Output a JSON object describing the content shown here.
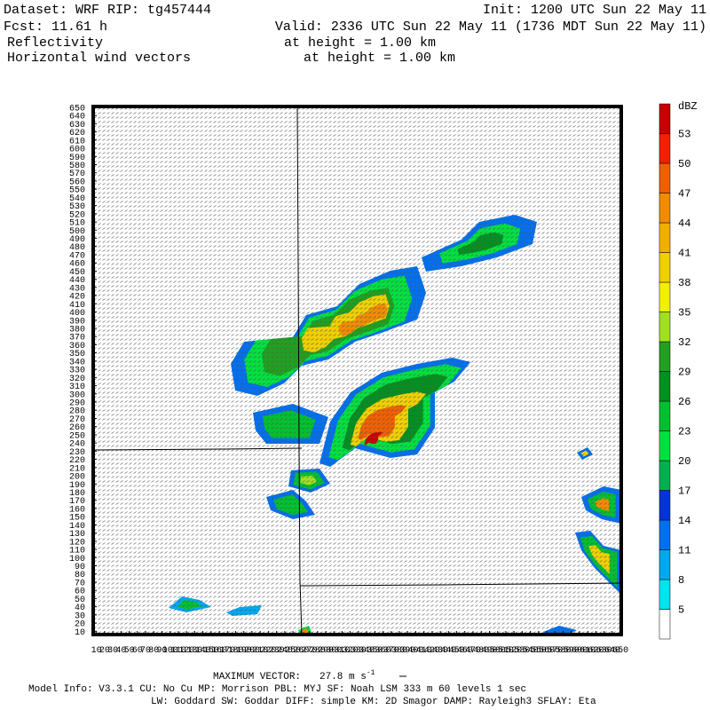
{
  "header": {
    "dataset": "Dataset: WRF  RIP: tg457444",
    "init": "Init: 1200 UTC Sun 22 May 11",
    "fcst": "Fcst:   11.61 h",
    "valid": "Valid: 2336 UTC Sun 22 May 11 (1736 MDT Sun 22 May 11)",
    "field1": "Reflectivity",
    "field1_level": "at height =  1.00 km",
    "field2": "Horizontal wind vectors",
    "field2_level": "at height =  1.00 km"
  },
  "plot": {
    "xlim": [
      6,
      651
    ],
    "ylim": [
      6,
      651
    ],
    "xticks": [
      10,
      20,
      30,
      40,
      50,
      60,
      70,
      80,
      90,
      100,
      110,
      120,
      130,
      140,
      150,
      160,
      170,
      180,
      190,
      200,
      210,
      220,
      230,
      240,
      250,
      260,
      270,
      280,
      290,
      300,
      310,
      320,
      330,
      340,
      350,
      360,
      370,
      380,
      390,
      400,
      410,
      420,
      430,
      440,
      450,
      460,
      470,
      480,
      490,
      500,
      510,
      520,
      530,
      540,
      550,
      560,
      570,
      580,
      590,
      600,
      610,
      620,
      630,
      640,
      650
    ],
    "yticks": [
      10,
      20,
      30,
      40,
      50,
      60,
      70,
      80,
      90,
      100,
      110,
      120,
      130,
      140,
      150,
      160,
      170,
      180,
      190,
      200,
      210,
      220,
      230,
      240,
      250,
      260,
      270,
      280,
      290,
      300,
      310,
      320,
      330,
      340,
      350,
      360,
      370,
      380,
      390,
      400,
      410,
      420,
      430,
      440,
      450,
      460,
      470,
      480,
      490,
      500,
      510,
      520,
      530,
      540,
      550,
      560,
      570,
      580,
      590,
      600,
      610,
      620,
      630,
      640,
      650
    ]
  },
  "colorbar": {
    "unit": "dBZ",
    "levels": [
      5,
      8,
      11,
      14,
      17,
      20,
      23,
      26,
      29,
      32,
      35,
      38,
      41,
      44,
      47,
      50,
      53
    ],
    "colors": [
      "#ffffff",
      "#00e4f0",
      "#00a8ee",
      "#0070f0",
      "#0034d8",
      "#00b050",
      "#00e040",
      "#00c030",
      "#009020",
      "#20a020",
      "#a0e020",
      "#f0f000",
      "#f0d000",
      "#f0b000",
      "#f08c00",
      "#f06000",
      "#f02000",
      "#c80000"
    ]
  },
  "footer": {
    "max_vector_label": "MAXIMUM VECTOR:",
    "max_vector_value": "27.8 m s",
    "max_vector_exp": "-1",
    "model_info": "Model Info: V3.3.1    CU: No Cu    MP: Morrison    PBL: MYJ     SF: Noah LSM     333 m    60 levels     1 sec",
    "physics": "LW: Goddard  SW: Goddar DIFF: simple KM: 2D Smagor DAMP: Rayleigh3  SFLAY: Eta"
  }
}
